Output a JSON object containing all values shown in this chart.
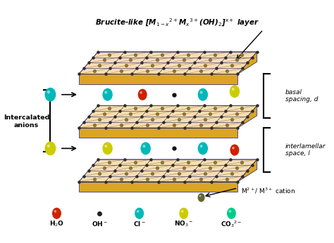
{
  "title": "Brucite-like [M$_{1-x}$$^{2+}$M$_x$$^{3+}$(OH)$_2$]$^{x+}$ layer",
  "bg_color": "#ffffff",
  "layer_colors": {
    "top_face": "#F5DEB3",
    "side_face": "#DAA520",
    "edge": "#1a1a6e",
    "dot": "#2b2b2b"
  },
  "sphere_colors": {
    "water": "#cc2200",
    "OH": "#333333",
    "Cl": "#00b8b8",
    "NO3": "#cccc00",
    "CO3": "#00cc88",
    "cation": "#666633"
  },
  "labels": {
    "intercalated": "Intercalated\nanions",
    "basal": "basal\nspacing, d",
    "interlamellar": "interlamellar\nspace, l",
    "cation": "M$^{2+}$/ M$^{3+}$ cation"
  },
  "legend_labels": [
    "H$_2$O",
    "OH$^-$",
    "Cl$^-$",
    "NO$_3$$^-$",
    "CO$_3$$^{2-}$"
  ],
  "legend_colors": [
    "#cc2200",
    "#333333",
    "#00b8b8",
    "#cccc00",
    "#00cc88"
  ]
}
